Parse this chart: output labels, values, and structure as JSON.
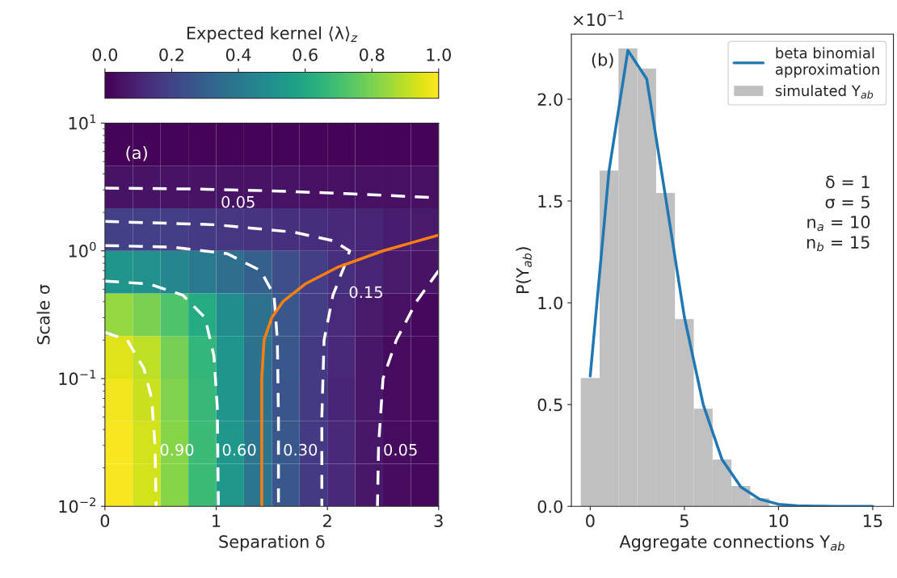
{
  "chart_data": [
    {
      "type": "heatmap",
      "xlabel": "Separation δ",
      "ylabel": "Scale σ",
      "clabel": "Expected kernel ⟨λ⟩$_{z}$",
      "log": "y",
      "x": [
        0.125,
        0.375,
        0.625,
        0.875,
        1.125,
        1.375,
        1.625,
        1.875,
        2.125,
        2.375,
        2.625,
        2.875
      ],
      "y": [
        6.8,
        3.16,
        1.47,
        0.68,
        0.316,
        0.147,
        0.068,
        0.0316,
        0.0147
      ],
      "cells": [
        [
          0.01,
          0.01,
          0.01,
          0.01,
          0.01,
          0.01,
          0.01,
          0.01,
          0.01,
          0.01,
          0.01,
          0.01
        ],
        [
          0.05,
          0.05,
          0.05,
          0.05,
          0.05,
          0.05,
          0.05,
          0.04,
          0.04,
          0.04,
          0.04,
          0.04
        ],
        [
          0.19,
          0.19,
          0.18,
          0.17,
          0.16,
          0.15,
          0.14,
          0.13,
          0.11,
          0.1,
          0.08,
          0.07
        ],
        [
          0.52,
          0.5,
          0.46,
          0.41,
          0.36,
          0.3,
          0.24,
          0.18,
          0.14,
          0.1,
          0.07,
          0.05
        ],
        [
          0.84,
          0.8,
          0.72,
          0.61,
          0.49,
          0.37,
          0.27,
          0.18,
          0.12,
          0.07,
          0.04,
          0.02
        ],
        [
          0.95,
          0.9,
          0.79,
          0.66,
          0.52,
          0.38,
          0.27,
          0.17,
          0.11,
          0.06,
          0.03,
          0.02
        ],
        [
          0.98,
          0.92,
          0.81,
          0.67,
          0.52,
          0.38,
          0.26,
          0.17,
          0.1,
          0.06,
          0.03,
          0.02
        ],
        [
          0.99,
          0.93,
          0.82,
          0.68,
          0.53,
          0.39,
          0.27,
          0.17,
          0.11,
          0.06,
          0.03,
          0.02
        ],
        [
          0.99,
          0.93,
          0.82,
          0.68,
          0.53,
          0.39,
          0.27,
          0.17,
          0.11,
          0.06,
          0.03,
          0.02
        ]
      ],
      "clim": [
        0,
        1
      ],
      "cticks": [
        {
          "value": 0,
          "label": "0.0"
        },
        0.2,
        0.4,
        0.6,
        0.8,
        {
          "value": 1,
          "label": "1.0"
        }
      ],
      "xlim": [
        0,
        3
      ],
      "xticks": [
        0,
        1,
        2,
        3
      ],
      "ylim": [
        0.01,
        10
      ],
      "yticks": [
        {
          "value": 0.01,
          "label": "10$^{−2}$"
        },
        {
          "value": 0.1,
          "label": "10$^{−1}$"
        },
        {
          "value": 1,
          "label": "10$^{0}$"
        },
        {
          "value": 10,
          "label": "10$^{1}$"
        }
      ],
      "series": [
        {
          "type": "line",
          "color": "#ffffff",
          "line_style": "dashed",
          "x": [
            0,
            0.2,
            0.35,
            0.42,
            0.45,
            0.46
          ],
          "values": [
            0.23,
            0.2,
            0.12,
            0.07,
            0.03,
            0.01
          ]
        },
        {
          "type": "line",
          "color": "#ffffff",
          "line_style": "dashed",
          "x": [
            0,
            0.4,
            0.7,
            0.9,
            0.98,
            1.01,
            1.02
          ],
          "values": [
            0.58,
            0.55,
            0.45,
            0.3,
            0.15,
            0.06,
            0.01
          ]
        },
        {
          "type": "line",
          "color": "#ffffff",
          "line_style": "dashed",
          "x": [
            0,
            0.6,
            1.1,
            1.4,
            1.52,
            1.55,
            1.56,
            1.56
          ],
          "values": [
            1.1,
            1.07,
            0.95,
            0.7,
            0.45,
            0.2,
            0.05,
            0.01
          ]
        },
        {
          "type": "line",
          "color": "#ffffff",
          "line_style": "dashed",
          "x": [
            0,
            1.0,
            1.7,
            2.05,
            2.2,
            2.15,
            2.05,
            1.97,
            1.95,
            1.95
          ],
          "values": [
            1.7,
            1.6,
            1.4,
            1.2,
            1.0,
            0.75,
            0.45,
            0.2,
            0.05,
            0.01
          ]
        },
        {
          "type": "line",
          "color": "#ffffff",
          "line_style": "dashed",
          "x": [
            0,
            0.8,
            1.5,
            2.2,
            3.0
          ],
          "values": [
            3.1,
            3.05,
            2.95,
            2.8,
            2.6
          ]
        },
        {
          "type": "line",
          "color": "#ffffff",
          "line_style": "dashed",
          "x": [
            3.0,
            2.8,
            2.62,
            2.5,
            2.46,
            2.45
          ],
          "values": [
            0.7,
            0.4,
            0.2,
            0.1,
            0.03,
            0.01
          ]
        },
        {
          "type": "line",
          "color": "#ff7f0e",
          "line_style": "solid",
          "x": [
            1.41,
            1.41,
            1.43,
            1.5,
            1.6,
            1.8,
            2.1,
            2.5,
            3.0
          ],
          "values": [
            0.01,
            0.1,
            0.2,
            0.3,
            0.4,
            0.55,
            0.75,
            1.0,
            1.33
          ]
        }
      ],
      "annotations": [
        "(a)",
        {
          "text": "0.90",
          "x": 0.45,
          "y": 0.035
        },
        {
          "text": "0.60",
          "x": 1.01,
          "y": 0.035
        },
        {
          "text": "0.30",
          "x": 1.56,
          "y": 0.035
        },
        {
          "text": "0.15",
          "x": 2.15,
          "y": 0.6
        },
        {
          "text": "0.05",
          "x": 2.46,
          "y": 0.035
        },
        {
          "text": "0.05",
          "x": 1.0,
          "y": 3.05
        }
      ]
    },
    {
      "type": "histogram",
      "xlabel": "Aggregate connections Y$_{ab}$",
      "ylabel": "P(Y$_{ab}$)",
      "bins": [
        -0.5,
        0.5,
        1.5,
        2.5,
        3.5,
        4.5,
        5.5,
        6.5,
        7.5,
        8.5,
        9.5,
        10.5,
        11.5,
        12.5,
        13.5,
        14.5,
        15.5
      ],
      "legend": "top right",
      "series": [
        {
          "type": "histogram",
          "name": "simulated Y$_{ab}$",
          "color": "#c0c0c0",
          "values": [
            0.63,
            1.65,
            2.25,
            2.15,
            1.54,
            0.92,
            0.48,
            0.23,
            0.1,
            0.04,
            null,
            0.0,
            0.0,
            0.0,
            0.0,
            0.0
          ]
        },
        {
          "type": "line",
          "name": "beta binomial\napproximation",
          "color": "#1f77b4",
          "x": [
            0,
            1,
            2,
            3,
            4,
            5,
            6,
            7,
            8,
            9,
            10,
            11,
            12,
            13,
            14,
            15
          ],
          "values": [
            0.64,
            1.65,
            2.24,
            2.1,
            1.52,
            0.93,
            0.5,
            0.23,
            0.095,
            0.035,
            0.01,
            0.003,
            0.001,
            0.0,
            0.0,
            0.0
          ]
        }
      ],
      "xlim": [
        -1.0,
        16.1
      ],
      "xticks": [
        0,
        5,
        10,
        15
      ],
      "ylim": [
        0,
        2.32
      ],
      "yticks": [
        {
          "value": 0,
          "label": "0.0"
        },
        0.5,
        {
          "value": 1,
          "label": "1.0"
        },
        1.5,
        {
          "value": 2,
          "label": "2.0"
        }
      ],
      "annotations": [
        "(b)",
        "δ = 1\nσ = 5\nn$_{a}$ = 10\nn$_{b}$ = 15",
        "×10$^{−1}$"
      ]
    }
  ]
}
